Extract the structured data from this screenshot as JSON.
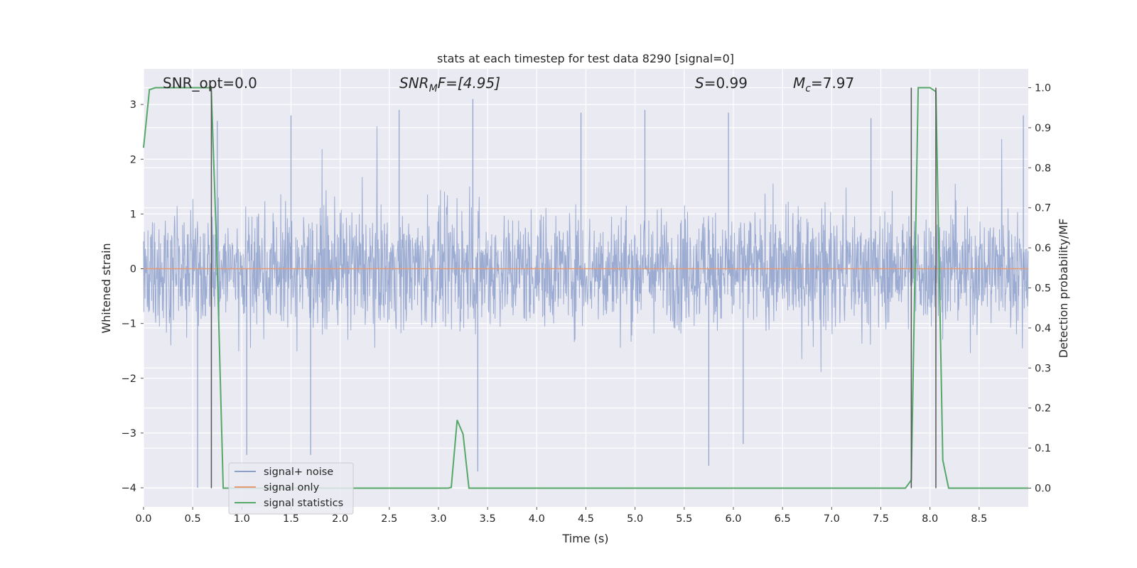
{
  "chart_data": {
    "type": "line",
    "title": "stats at each timestep for test data 8290 [signal=0]",
    "xlabel": "Time (s)",
    "ylabel_left": "Whitened strain",
    "ylabel_right": "Detection probability/MF",
    "xlim": [
      0.0,
      9.0
    ],
    "ylim_left": [
      -4.35,
      3.65
    ],
    "ylim_right": [
      -0.047,
      1.047
    ],
    "grid": true,
    "legend_position": "lower-left",
    "x_ticks": [
      0.0,
      0.5,
      1.0,
      1.5,
      2.0,
      2.5,
      3.0,
      3.5,
      4.0,
      4.5,
      5.0,
      5.5,
      6.0,
      6.5,
      7.0,
      7.5,
      8.0,
      8.5
    ],
    "x_tick_labels": [
      "0.0",
      "0.5",
      "1.0",
      "1.5",
      "2.0",
      "2.5",
      "3.0",
      "3.5",
      "4.0",
      "4.5",
      "5.0",
      "5.5",
      "6.0",
      "6.5",
      "7.0",
      "7.5",
      "8.0",
      "8.5"
    ],
    "y_left_ticks": [
      3,
      2,
      1,
      0,
      -1,
      -2,
      -3,
      -4
    ],
    "y_left_tick_labels": [
      "3",
      "2",
      "1",
      "0",
      "−1",
      "−2",
      "−3",
      "−4"
    ],
    "y_right_ticks": [
      1.0,
      0.9,
      0.8,
      0.7,
      0.6,
      0.5,
      0.4,
      0.3,
      0.2,
      0.1,
      0.0
    ],
    "y_right_tick_labels": [
      "1.0",
      "0.9",
      "0.8",
      "0.7",
      "0.6",
      "0.5",
      "0.4",
      "0.3",
      "0.2",
      "0.1",
      "0.0"
    ],
    "annotations": {
      "snr_opt": "SNR_opt=0.0",
      "snr_mf_main": "SNR",
      "snr_mf_sub": "M",
      "snr_mf_tail": "F=[4.95]",
      "s_main": "S",
      "s_value": "=0.99",
      "mc_main": "M",
      "mc_sub": "c",
      "mc_value": "=7.97"
    },
    "series": [
      {
        "name": "signal+ noise",
        "color": "#8da0cb",
        "style": "dense noise trace, amplitude approx ±1.3 with spikes to ~3.1 and ~-4.0",
        "notable_spikes": [
          [
            0.55,
            -4.0
          ],
          [
            0.75,
            2.7
          ],
          [
            1.05,
            -3.4
          ],
          [
            1.5,
            2.8
          ],
          [
            1.7,
            -3.4
          ],
          [
            2.6,
            2.9
          ],
          [
            3.35,
            3.1
          ],
          [
            3.4,
            -3.7
          ],
          [
            4.45,
            2.85
          ],
          [
            5.1,
            2.9
          ],
          [
            5.75,
            -3.6
          ],
          [
            5.95,
            2.85
          ],
          [
            6.1,
            -3.2
          ],
          [
            7.4,
            2.75
          ],
          [
            8.95,
            2.8
          ]
        ]
      },
      {
        "name": "signal only",
        "color": "#e39b76",
        "x": [
          0.0,
          9.0
        ],
        "y": [
          0.0,
          0.0
        ]
      },
      {
        "name": "signal statistics",
        "color": "#55a868",
        "axis": "right",
        "x": [
          0.0,
          0.06,
          0.12,
          0.5,
          0.68,
          0.69,
          0.75,
          0.81,
          0.88,
          1.5,
          2.5,
          3.1,
          3.13,
          3.19,
          3.25,
          3.31,
          3.5,
          5.0,
          7.0,
          7.75,
          7.81,
          7.88,
          7.94,
          8.0,
          8.06,
          8.13,
          8.19,
          8.5,
          9.0
        ],
        "y": [
          0.85,
          0.995,
          1.0,
          1.0,
          1.0,
          0.99,
          0.55,
          0.0,
          0.0,
          0.0,
          0.0,
          0.0,
          0.002,
          0.17,
          0.135,
          0.0,
          0.0,
          0.0,
          0.0,
          0.0,
          0.02,
          1.0,
          1.0,
          1.0,
          0.99,
          0.07,
          0.0,
          0.0,
          0.0
        ]
      }
    ],
    "vertical_markers": [
      {
        "x": 0.69,
        "color": "#555555"
      },
      {
        "x": 7.81,
        "color": "#555555"
      },
      {
        "x": 8.06,
        "color": "#555555"
      }
    ],
    "legend": [
      {
        "label": "signal+ noise",
        "color": "#8da0cb"
      },
      {
        "label": "signal only",
        "color": "#e39b76"
      },
      {
        "label": "signal statistics",
        "color": "#55a868"
      }
    ]
  }
}
